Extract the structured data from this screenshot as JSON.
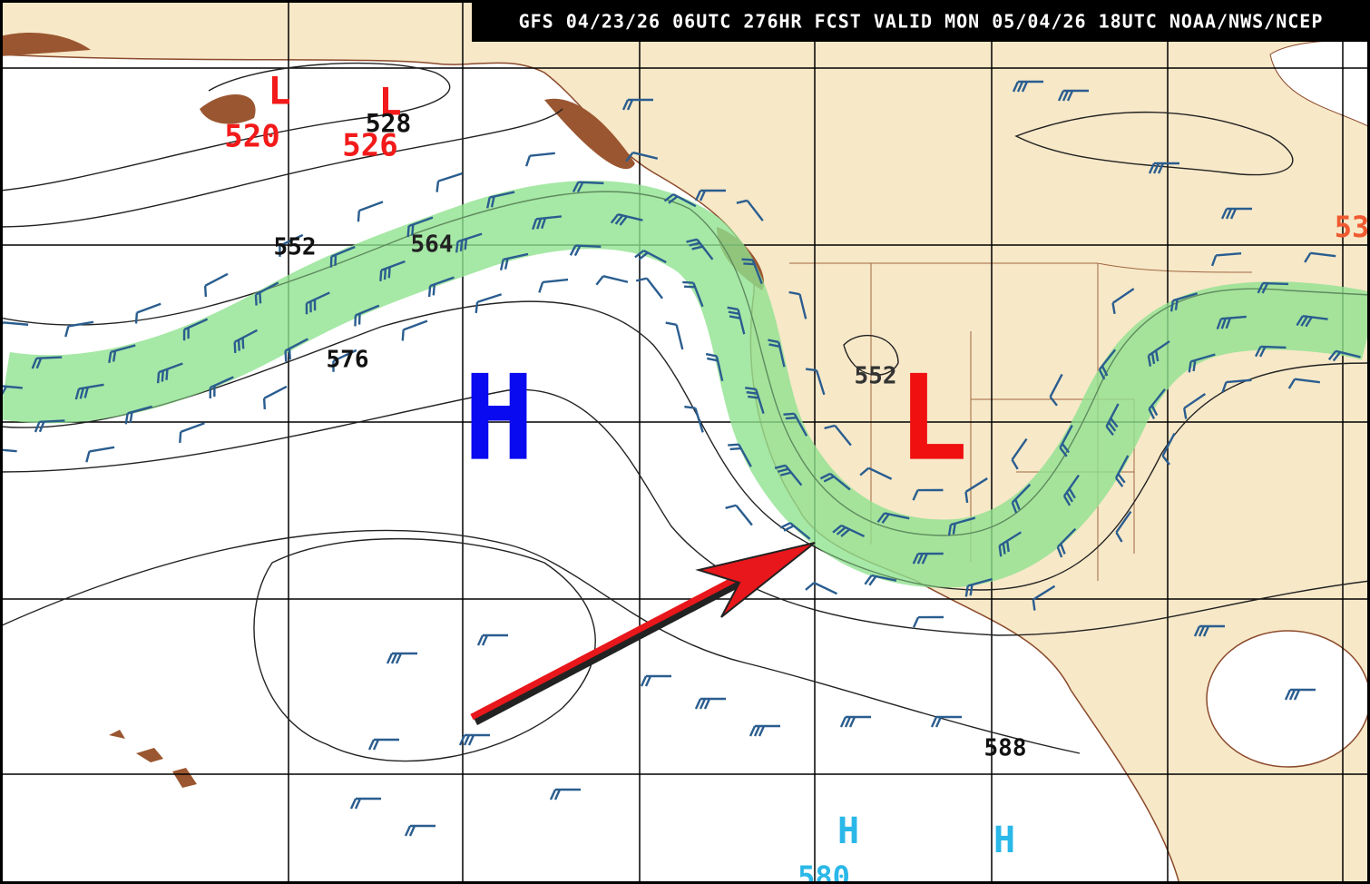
{
  "header": {
    "title": "GFS 04/23/26 06UTC 276HR FCST VALID MON 05/04/26 18UTC NOAA/NWS/NCEP"
  },
  "labels": [
    "L",
    "520",
    "L",
    "526",
    "528",
    "552",
    "564",
    "576",
    "H",
    "552",
    "L",
    "588",
    "H",
    "580",
    "H",
    "53"
  ]
}
